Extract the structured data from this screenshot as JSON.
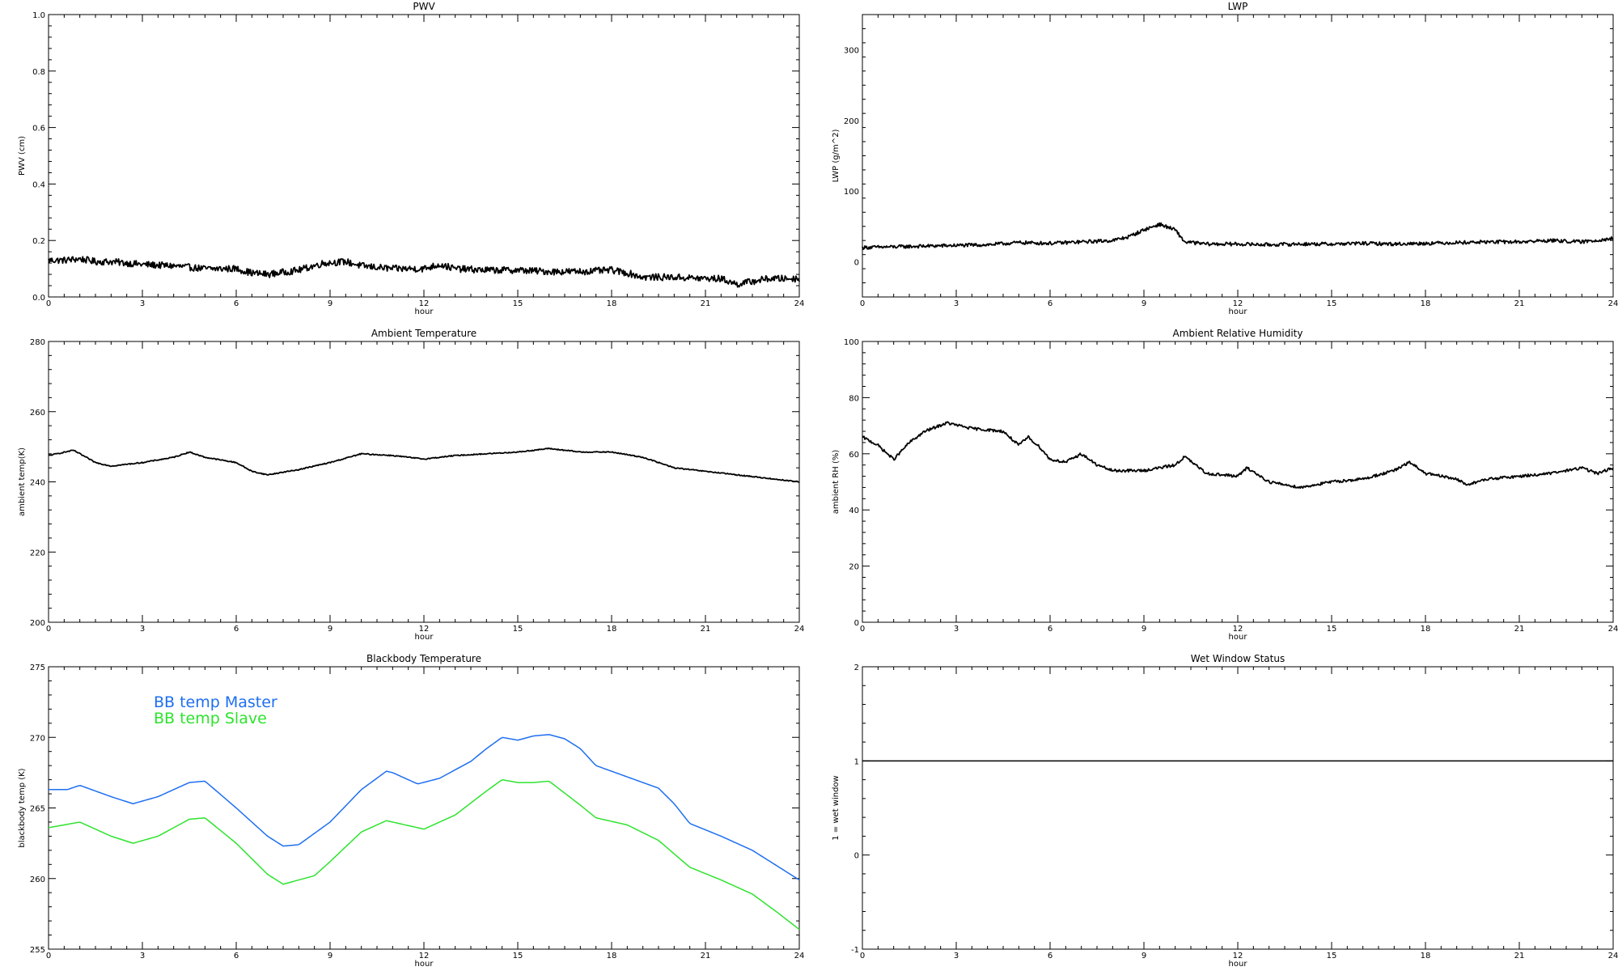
{
  "chart_data": [
    {
      "id": "pwv",
      "type": "line",
      "title": "PWV",
      "xlabel": "hour",
      "ylabel": "PWV (cm)",
      "xlim": [
        0,
        24
      ],
      "ylim": [
        0,
        1.0
      ],
      "xticks": [
        "0",
        "3",
        "6",
        "9",
        "12",
        "15",
        "18",
        "21",
        "24"
      ],
      "yticks": [
        "0.0",
        "0.2",
        "0.4",
        "0.6",
        "0.8",
        "1.0"
      ],
      "noise": 0.012,
      "series": [
        {
          "color": "#000000",
          "points": [
            [
              0,
              0.13
            ],
            [
              0.5,
              0.13
            ],
            [
              1,
              0.135
            ],
            [
              1.5,
              0.125
            ],
            [
              2,
              0.125
            ],
            [
              3,
              0.115
            ],
            [
              4,
              0.11
            ],
            [
              5,
              0.1
            ],
            [
              6,
              0.1
            ],
            [
              6.5,
              0.085
            ],
            [
              7,
              0.08
            ],
            [
              8,
              0.095
            ],
            [
              8.8,
              0.12
            ],
            [
              9.5,
              0.125
            ],
            [
              10,
              0.11
            ],
            [
              11,
              0.1
            ],
            [
              12,
              0.1
            ],
            [
              12.5,
              0.115
            ],
            [
              13,
              0.1
            ],
            [
              14,
              0.095
            ],
            [
              15,
              0.095
            ],
            [
              16,
              0.09
            ],
            [
              17,
              0.09
            ],
            [
              18,
              0.095
            ],
            [
              18.5,
              0.085
            ],
            [
              19,
              0.07
            ],
            [
              20,
              0.07
            ],
            [
              21,
              0.065
            ],
            [
              21.5,
              0.065
            ],
            [
              22,
              0.045
            ],
            [
              23,
              0.065
            ],
            [
              24,
              0.065
            ]
          ]
        }
      ]
    },
    {
      "id": "lwp",
      "type": "line",
      "title": "LWP",
      "xlabel": "hour",
      "ylabel": "LWP (g/m^2)",
      "xlim": [
        0,
        24
      ],
      "ylim": [
        -50,
        350
      ],
      "xticks": [
        "0",
        "3",
        "6",
        "9",
        "12",
        "15",
        "18",
        "21",
        "24"
      ],
      "yticks": [
        "0",
        "100",
        "200",
        "300"
      ],
      "noise": 2.5,
      "series": [
        {
          "color": "#000000",
          "points": [
            [
              0,
              20
            ],
            [
              2,
              22
            ],
            [
              3,
              23
            ],
            [
              4,
              24
            ],
            [
              5,
              27
            ],
            [
              6,
              26
            ],
            [
              7,
              28
            ],
            [
              8,
              30
            ],
            [
              8.5,
              35
            ],
            [
              9,
              45
            ],
            [
              9.5,
              53
            ],
            [
              10,
              45
            ],
            [
              10.3,
              28
            ],
            [
              11,
              25
            ],
            [
              12,
              25
            ],
            [
              13,
              24
            ],
            [
              14,
              25
            ],
            [
              15,
              25
            ],
            [
              16,
              26
            ],
            [
              17,
              25
            ],
            [
              18,
              26
            ],
            [
              19,
              27
            ],
            [
              20,
              28
            ],
            [
              21,
              28
            ],
            [
              22,
              30
            ],
            [
              23,
              28
            ],
            [
              24,
              33
            ]
          ]
        }
      ]
    },
    {
      "id": "ambient-temp",
      "type": "line",
      "title": "Ambient Temperature",
      "xlabel": "hour",
      "ylabel": "ambient temp(K)",
      "xlim": [
        0,
        24
      ],
      "ylim": [
        200,
        280
      ],
      "xticks": [
        "0",
        "3",
        "6",
        "9",
        "12",
        "15",
        "18",
        "21",
        "24"
      ],
      "yticks": [
        "200",
        "220",
        "240",
        "260",
        "280"
      ],
      "noise": 0.15,
      "series": [
        {
          "color": "#000000",
          "points": [
            [
              0,
              247.5
            ],
            [
              0.8,
              249
            ],
            [
              1.5,
              245.5
            ],
            [
              2,
              244.5
            ],
            [
              3,
              245.5
            ],
            [
              4,
              247
            ],
            [
              4.5,
              248.5
            ],
            [
              5,
              247
            ],
            [
              6,
              245.5
            ],
            [
              6.5,
              243
            ],
            [
              7,
              242
            ],
            [
              8,
              243.5
            ],
            [
              9,
              245.5
            ],
            [
              10,
              248
            ],
            [
              11,
              247.5
            ],
            [
              12,
              246.5
            ],
            [
              13,
              247.5
            ],
            [
              14,
              248
            ],
            [
              15,
              248.5
            ],
            [
              16,
              249.5
            ],
            [
              17,
              248.5
            ],
            [
              18,
              248.5
            ],
            [
              19,
              247
            ],
            [
              20,
              244
            ],
            [
              21,
              243
            ],
            [
              22,
              242
            ],
            [
              23,
              241
            ],
            [
              24,
              240
            ]
          ]
        }
      ]
    },
    {
      "id": "ambient-rh",
      "type": "line",
      "title": "Ambient Relative Humidity",
      "xlabel": "hour",
      "ylabel": "ambient RH (%)",
      "xlim": [
        0,
        24
      ],
      "ylim": [
        0,
        100
      ],
      "xticks": [
        "0",
        "3",
        "6",
        "9",
        "12",
        "15",
        "18",
        "21",
        "24"
      ],
      "yticks": [
        "0",
        "20",
        "40",
        "60",
        "80",
        "100"
      ],
      "noise": 0.5,
      "series": [
        {
          "color": "#000000",
          "points": [
            [
              0,
              66
            ],
            [
              0.5,
              63
            ],
            [
              1,
              58
            ],
            [
              1.5,
              64
            ],
            [
              2,
              68
            ],
            [
              2.7,
              71
            ],
            [
              3.5,
              69
            ],
            [
              4.5,
              68
            ],
            [
              5,
              63
            ],
            [
              5.3,
              66
            ],
            [
              5.7,
              62
            ],
            [
              6,
              58
            ],
            [
              6.5,
              57
            ],
            [
              7,
              60
            ],
            [
              7.5,
              56
            ],
            [
              8,
              54
            ],
            [
              9,
              54
            ],
            [
              10,
              56
            ],
            [
              10.3,
              59
            ],
            [
              11,
              53
            ],
            [
              12,
              52
            ],
            [
              12.3,
              55
            ],
            [
              13,
              50
            ],
            [
              14,
              48
            ],
            [
              15,
              50
            ],
            [
              16,
              51
            ],
            [
              17,
              54
            ],
            [
              17.5,
              57
            ],
            [
              18,
              53
            ],
            [
              19,
              51
            ],
            [
              19.3,
              49
            ],
            [
              20,
              51
            ],
            [
              21,
              52
            ],
            [
              22,
              53
            ],
            [
              23,
              55
            ],
            [
              23.5,
              53
            ],
            [
              24,
              55
            ]
          ]
        }
      ]
    },
    {
      "id": "bb-temp",
      "type": "line",
      "title": "Blackbody Temperature",
      "xlabel": "hour",
      "ylabel": "blackbody temp (K)",
      "xlim": [
        0,
        24
      ],
      "ylim": [
        255,
        275
      ],
      "xticks": [
        "0",
        "3",
        "6",
        "9",
        "12",
        "15",
        "18",
        "21",
        "24"
      ],
      "yticks": [
        "255",
        "260",
        "265",
        "270",
        "275"
      ],
      "noise": 0,
      "legend": {
        "position": "top-left"
      },
      "series": [
        {
          "name": "BB temp Master",
          "color": "#1e6ff0",
          "points": [
            [
              0,
              266.3
            ],
            [
              0.6,
              266.3
            ],
            [
              1,
              266.6
            ],
            [
              2,
              265.8
            ],
            [
              2.7,
              265.3
            ],
            [
              3.5,
              265.8
            ],
            [
              4.5,
              266.8
            ],
            [
              5,
              266.9
            ],
            [
              6,
              265
            ],
            [
              7,
              263
            ],
            [
              7.5,
              262.3
            ],
            [
              8,
              262.4
            ],
            [
              9,
              264
            ],
            [
              10,
              266.3
            ],
            [
              10.8,
              267.6
            ],
            [
              11,
              267.5
            ],
            [
              11.8,
              266.7
            ],
            [
              12.5,
              267.1
            ],
            [
              13.5,
              268.3
            ],
            [
              14,
              269.2
            ],
            [
              14.5,
              270
            ],
            [
              15,
              269.8
            ],
            [
              15.5,
              270.1
            ],
            [
              16,
              270.2
            ],
            [
              16.5,
              269.9
            ],
            [
              17,
              269.2
            ],
            [
              17.5,
              268
            ],
            [
              18.5,
              267.2
            ],
            [
              19.5,
              266.4
            ],
            [
              20,
              265.3
            ],
            [
              20.5,
              263.9
            ],
            [
              21.5,
              263
            ],
            [
              22.5,
              262
            ],
            [
              23,
              261.3
            ],
            [
              24,
              259.9
            ]
          ]
        },
        {
          "name": "BB temp Slave",
          "color": "#2ee32e",
          "points": [
            [
              0,
              263.6
            ],
            [
              1,
              264
            ],
            [
              2,
              263
            ],
            [
              2.7,
              262.5
            ],
            [
              3.5,
              263
            ],
            [
              4.5,
              264.2
            ],
            [
              5,
              264.3
            ],
            [
              6,
              262.5
            ],
            [
              7,
              260.3
            ],
            [
              7.5,
              259.6
            ],
            [
              8.5,
              260.2
            ],
            [
              9,
              261.2
            ],
            [
              10,
              263.3
            ],
            [
              10.8,
              264.1
            ],
            [
              12,
              263.5
            ],
            [
              13,
              264.5
            ],
            [
              14,
              266.2
            ],
            [
              14.5,
              267
            ],
            [
              15,
              266.8
            ],
            [
              15.5,
              266.8
            ],
            [
              16,
              266.9
            ],
            [
              17,
              265.2
            ],
            [
              17.5,
              264.3
            ],
            [
              18.5,
              263.8
            ],
            [
              19.5,
              262.7
            ],
            [
              20.5,
              260.8
            ],
            [
              21.5,
              259.9
            ],
            [
              22.5,
              258.9
            ],
            [
              23.3,
              257.6
            ],
            [
              24,
              256.4
            ]
          ]
        }
      ]
    },
    {
      "id": "wet-window",
      "type": "line",
      "title": "Wet Window Status",
      "xlabel": "hour",
      "ylabel": "1 = wet window",
      "xlim": [
        0,
        24
      ],
      "ylim": [
        -1,
        2
      ],
      "xticks": [
        "0",
        "3",
        "6",
        "9",
        "12",
        "15",
        "18",
        "21",
        "24"
      ],
      "yticks": [
        "-1",
        "0",
        "1",
        "2"
      ],
      "noise": 0,
      "series": [
        {
          "color": "#000000",
          "points": [
            [
              0,
              1
            ],
            [
              24,
              1
            ]
          ]
        }
      ]
    }
  ]
}
